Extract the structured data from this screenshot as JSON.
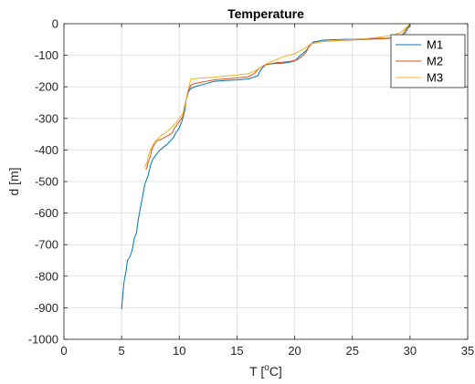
{
  "chart_data": {
    "type": "line",
    "title": "Temperature",
    "xlabel": {
      "base": "T [",
      "sup": "o",
      "rest": "C]"
    },
    "ylabel": "d [m]",
    "xlim": [
      0,
      35
    ],
    "ylim": [
      -1000,
      0
    ],
    "xticks": [
      0,
      5,
      10,
      15,
      20,
      25,
      30,
      35
    ],
    "yticks": [
      0,
      -100,
      -200,
      -300,
      -400,
      -500,
      -600,
      -700,
      -800,
      -900,
      -1000
    ],
    "grid": true,
    "legend_position": "top-right",
    "series": [
      {
        "name": "M1",
        "color": "#0072BD",
        "points": [
          [
            30.0,
            0
          ],
          [
            29.9,
            -10
          ],
          [
            29.7,
            -22
          ],
          [
            29.5,
            -35
          ],
          [
            29.0,
            -43
          ],
          [
            28.0,
            -46
          ],
          [
            26.0,
            -48
          ],
          [
            24.0,
            -50
          ],
          [
            22.5,
            -52
          ],
          [
            21.6,
            -58
          ],
          [
            21.3,
            -70
          ],
          [
            21.0,
            -85
          ],
          [
            20.5,
            -100
          ],
          [
            20.0,
            -118
          ],
          [
            19.5,
            -122
          ],
          [
            19.0,
            -125
          ],
          [
            18.0,
            -127
          ],
          [
            17.5,
            -130
          ],
          [
            17.2,
            -140
          ],
          [
            17.0,
            -150
          ],
          [
            16.8,
            -165
          ],
          [
            16.4,
            -170
          ],
          [
            16.0,
            -175
          ],
          [
            15.0,
            -178
          ],
          [
            14.0,
            -180
          ],
          [
            13.0,
            -183
          ],
          [
            12.0,
            -193
          ],
          [
            11.5,
            -198
          ],
          [
            11.0,
            -205
          ],
          [
            10.8,
            -215
          ],
          [
            10.6,
            -240
          ],
          [
            10.5,
            -270
          ],
          [
            10.3,
            -300
          ],
          [
            10.0,
            -330
          ],
          [
            9.7,
            -345
          ],
          [
            9.5,
            -360
          ],
          [
            9.0,
            -380
          ],
          [
            8.5,
            -395
          ],
          [
            8.2,
            -405
          ],
          [
            8.0,
            -415
          ],
          [
            7.7,
            -430
          ],
          [
            7.5,
            -450
          ],
          [
            7.3,
            -480
          ],
          [
            7.0,
            -510
          ],
          [
            6.8,
            -550
          ],
          [
            6.6,
            -590
          ],
          [
            6.4,
            -630
          ],
          [
            6.3,
            -660
          ],
          [
            6.1,
            -680
          ],
          [
            6.0,
            -700
          ],
          [
            5.9,
            -720
          ],
          [
            5.7,
            -740
          ],
          [
            5.5,
            -750
          ],
          [
            5.4,
            -780
          ],
          [
            5.2,
            -820
          ],
          [
            5.1,
            -860
          ],
          [
            5.0,
            -905
          ]
        ]
      },
      {
        "name": "M2",
        "color": "#D95319",
        "points": [
          [
            30.0,
            0
          ],
          [
            29.8,
            -10
          ],
          [
            29.6,
            -20
          ],
          [
            29.4,
            -32
          ],
          [
            29.0,
            -42
          ],
          [
            28.0,
            -47
          ],
          [
            26.0,
            -50
          ],
          [
            24.0,
            -53
          ],
          [
            22.5,
            -56
          ],
          [
            21.5,
            -62
          ],
          [
            21.2,
            -75
          ],
          [
            21.0,
            -90
          ],
          [
            20.6,
            -105
          ],
          [
            20.2,
            -115
          ],
          [
            19.5,
            -120
          ],
          [
            18.5,
            -123
          ],
          [
            18.0,
            -126
          ],
          [
            17.3,
            -132
          ],
          [
            16.8,
            -145
          ],
          [
            16.5,
            -158
          ],
          [
            16.0,
            -168
          ],
          [
            15.0,
            -172
          ],
          [
            14.0,
            -175
          ],
          [
            13.0,
            -178
          ],
          [
            12.0,
            -185
          ],
          [
            11.3,
            -190
          ],
          [
            11.0,
            -195
          ],
          [
            10.8,
            -210
          ],
          [
            10.6,
            -240
          ],
          [
            10.4,
            -270
          ],
          [
            10.3,
            -295
          ],
          [
            9.9,
            -315
          ],
          [
            9.6,
            -330
          ],
          [
            9.4,
            -345
          ],
          [
            9.0,
            -355
          ],
          [
            8.5,
            -365
          ],
          [
            8.0,
            -372
          ],
          [
            7.8,
            -385
          ],
          [
            7.6,
            -400
          ],
          [
            7.5,
            -420
          ],
          [
            7.3,
            -440
          ],
          [
            7.2,
            -455
          ],
          [
            7.1,
            -462
          ]
        ]
      },
      {
        "name": "M3",
        "color": "#EDB120",
        "points": [
          [
            30.0,
            0
          ],
          [
            29.8,
            -8
          ],
          [
            29.5,
            -18
          ],
          [
            29.2,
            -28
          ],
          [
            28.5,
            -36
          ],
          [
            27.5,
            -42
          ],
          [
            26.0,
            -48
          ],
          [
            24.0,
            -52
          ],
          [
            22.5,
            -56
          ],
          [
            21.4,
            -64
          ],
          [
            21.0,
            -75
          ],
          [
            20.5,
            -85
          ],
          [
            20.0,
            -95
          ],
          [
            19.5,
            -100
          ],
          [
            19.0,
            -105
          ],
          [
            18.5,
            -112
          ],
          [
            18.0,
            -120
          ],
          [
            17.5,
            -128
          ],
          [
            17.0,
            -140
          ],
          [
            16.5,
            -150
          ],
          [
            16.0,
            -158
          ],
          [
            15.0,
            -163
          ],
          [
            14.0,
            -166
          ],
          [
            13.0,
            -170
          ],
          [
            12.0,
            -172
          ],
          [
            11.0,
            -175
          ],
          [
            10.9,
            -190
          ],
          [
            10.7,
            -220
          ],
          [
            10.5,
            -260
          ],
          [
            10.3,
            -285
          ],
          [
            10.0,
            -300
          ],
          [
            9.7,
            -315
          ],
          [
            9.3,
            -330
          ],
          [
            9.0,
            -340
          ],
          [
            8.6,
            -350
          ],
          [
            8.2,
            -362
          ],
          [
            8.0,
            -370
          ],
          [
            7.7,
            -385
          ],
          [
            7.5,
            -400
          ],
          [
            7.3,
            -420
          ],
          [
            7.2,
            -440
          ],
          [
            7.0,
            -455
          ]
        ]
      }
    ]
  }
}
